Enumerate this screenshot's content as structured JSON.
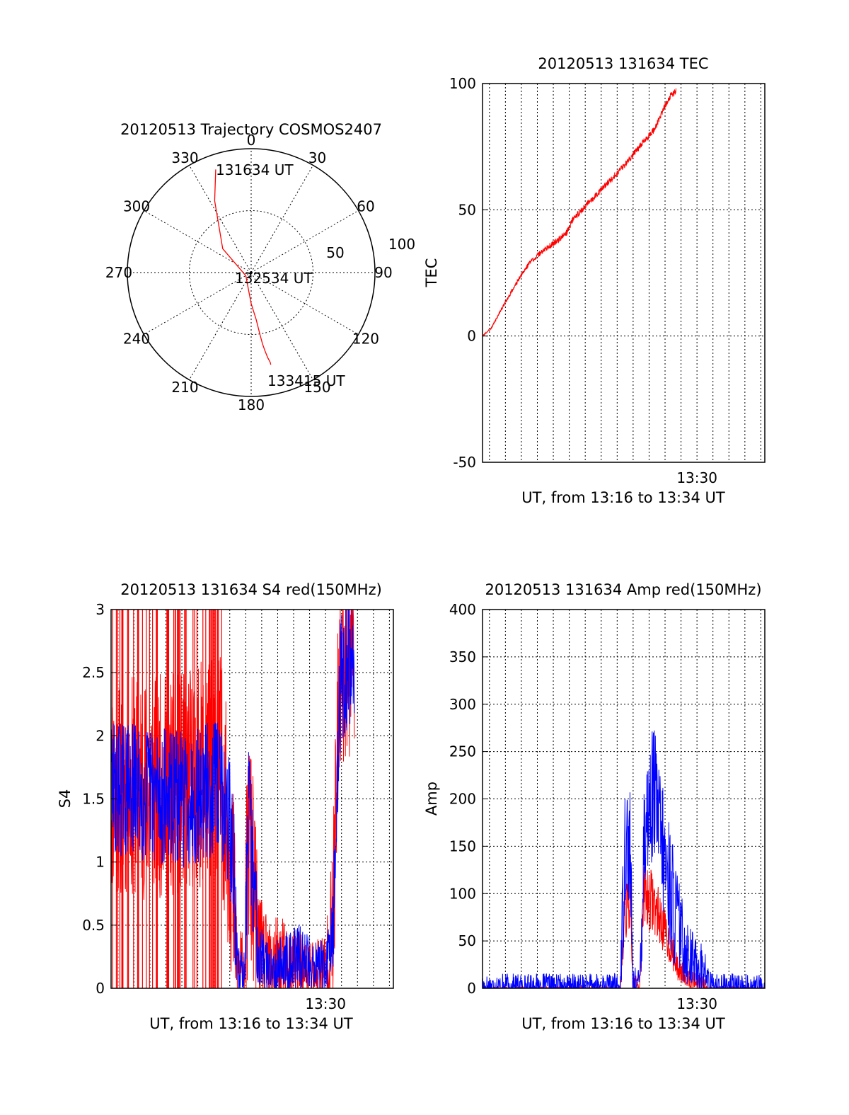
{
  "chart_data": [
    {
      "type": "polar",
      "title": "20120513 Trajectory COSMOS2407",
      "angle_labels": [
        "0",
        "30",
        "60",
        "90",
        "120",
        "150",
        "180",
        "210",
        "240",
        "270",
        "300",
        "330"
      ],
      "radius_labels": [
        "50",
        "100"
      ],
      "rlim": [
        0,
        100
      ],
      "radius_reversed": true,
      "annotations": {
        "start": "131634 UT",
        "mid": "132534 UT",
        "end": "133415 UT"
      },
      "trajectory": [
        {
          "az": 341,
          "el": 12
        },
        {
          "az": 333,
          "el": 35
        },
        {
          "az": 310,
          "el": 70
        },
        {
          "az": 240,
          "el": 95
        },
        {
          "az": 180,
          "el": 75
        },
        {
          "az": 174,
          "el": 62
        },
        {
          "az": 172,
          "el": 50
        },
        {
          "az": 171,
          "el": 42
        },
        {
          "az": 170,
          "el": 36
        },
        {
          "az": 169,
          "el": 30
        },
        {
          "az": 168,
          "el": 26
        },
        {
          "az": 168,
          "el": 24
        }
      ],
      "series_color": "#ff0000",
      "grid": true
    },
    {
      "type": "line",
      "title": "20120513 131634 TEC",
      "xlabel": "UT, from 13:16 to 13:34 UT",
      "ylabel": "TEC",
      "xlim": [
        13.2761,
        13.5708
      ],
      "ylim": [
        -50,
        100
      ],
      "yticks": [
        "100",
        "50",
        "0",
        "-50"
      ],
      "xticks": [
        {
          "value": 13.5,
          "label": "13:30"
        }
      ],
      "series": [
        {
          "color": "#ff0000",
          "noise": 1.2,
          "seed": 3,
          "points": [
            [
              13.2761,
              0
            ],
            [
              13.285,
              3
            ],
            [
              13.295,
              10
            ],
            [
              13.31,
              20
            ],
            [
              13.325,
              29
            ],
            [
              13.34,
              34
            ],
            [
              13.355,
              38
            ],
            [
              13.364,
              41
            ],
            [
              13.37,
              46
            ],
            [
              13.385,
              52
            ],
            [
              13.405,
              60
            ],
            [
              13.425,
              68
            ],
            [
              13.442,
              76
            ],
            [
              13.456,
              82
            ],
            [
              13.465,
              90
            ],
            [
              13.472,
              95
            ],
            [
              13.478,
              97
            ]
          ]
        }
      ],
      "grid": true
    },
    {
      "type": "line",
      "title": "20120513 131634 S4 red(150MHz)",
      "xlabel": "UT, from 13:16 to 13:34 UT",
      "ylabel": "S4",
      "xlim": [
        13.2761,
        13.5708
      ],
      "ylim": [
        0,
        3
      ],
      "yticks": [
        "3",
        "2.5",
        "2",
        "1.5",
        "1",
        "0.5",
        "0"
      ],
      "xticks": [
        {
          "value": 13.5,
          "label": "13:30"
        }
      ],
      "series": [
        {
          "color": "#ff0000",
          "noise": 0.9,
          "seed": 11,
          "spikes": 0.35,
          "points": [
            [
              13.2761,
              1.6
            ],
            [
              13.35,
              1.6
            ],
            [
              13.39,
              1.8
            ],
            [
              13.4,
              1.1
            ],
            [
              13.405,
              0.6
            ],
            [
              13.408,
              0.15
            ],
            [
              13.415,
              0.15
            ],
            [
              13.42,
              1.2
            ],
            [
              13.43,
              0.3
            ],
            [
              13.44,
              0.18
            ],
            [
              13.455,
              0.2
            ],
            [
              13.465,
              0.15
            ],
            [
              13.48,
              0.12
            ],
            [
              13.5,
              0.15
            ],
            [
              13.508,
              0.5
            ],
            [
              13.515,
              2.6
            ],
            [
              13.53,
              2.8
            ]
          ]
        },
        {
          "color": "#0000ff",
          "noise": 0.55,
          "seed": 29,
          "points": [
            [
              13.2761,
              1.6
            ],
            [
              13.35,
              1.5
            ],
            [
              13.39,
              1.6
            ],
            [
              13.4,
              1.3
            ],
            [
              13.405,
              0.8
            ],
            [
              13.408,
              0.15
            ],
            [
              13.415,
              0.13
            ],
            [
              13.42,
              1.4
            ],
            [
              13.43,
              0.3
            ],
            [
              13.44,
              0.15
            ],
            [
              13.455,
              0.2
            ],
            [
              13.47,
              0.25
            ],
            [
              13.485,
              0.22
            ],
            [
              13.5,
              0.15
            ],
            [
              13.508,
              0.4
            ],
            [
              13.515,
              2.4
            ],
            [
              13.53,
              2.7
            ]
          ]
        }
      ],
      "grid": true
    },
    {
      "type": "line",
      "title": "20120513 131634 Amp red(150MHz)",
      "xlabel": "UT, from 13:16 to 13:34 UT",
      "ylabel": "Amp",
      "xlim": [
        13.2761,
        13.5708
      ],
      "ylim": [
        0,
        400
      ],
      "yticks": [
        "400",
        "350",
        "300",
        "250",
        "200",
        "150",
        "100",
        "50",
        "0"
      ],
      "xticks": [
        {
          "value": 13.5,
          "label": "13:30"
        }
      ],
      "series": [
        {
          "color": "#ff0000",
          "noise": 35,
          "seed": 7,
          "points": [
            [
              13.2761,
              0
            ],
            [
              13.42,
              0
            ],
            [
              13.425,
              80
            ],
            [
              13.43,
              90
            ],
            [
              13.433,
              5
            ],
            [
              13.44,
              5
            ],
            [
              13.445,
              100
            ],
            [
              13.455,
              90
            ],
            [
              13.47,
              50
            ],
            [
              13.48,
              20
            ],
            [
              13.495,
              8
            ],
            [
              13.505,
              5
            ],
            [
              13.51,
              0
            ],
            [
              13.5708,
              0
            ]
          ]
        },
        {
          "color": "#0000ff",
          "noise": 70,
          "seed": 17,
          "points": [
            [
              13.2761,
              1
            ],
            [
              13.42,
              1
            ],
            [
              13.425,
              160
            ],
            [
              13.43,
              150
            ],
            [
              13.433,
              5
            ],
            [
              13.44,
              5
            ],
            [
              13.445,
              170
            ],
            [
              13.455,
              210
            ],
            [
              13.465,
              140
            ],
            [
              13.475,
              90
            ],
            [
              13.485,
              50
            ],
            [
              13.495,
              30
            ],
            [
              13.505,
              22
            ],
            [
              13.515,
              2
            ],
            [
              13.5708,
              0
            ]
          ]
        }
      ],
      "grid": true
    }
  ]
}
